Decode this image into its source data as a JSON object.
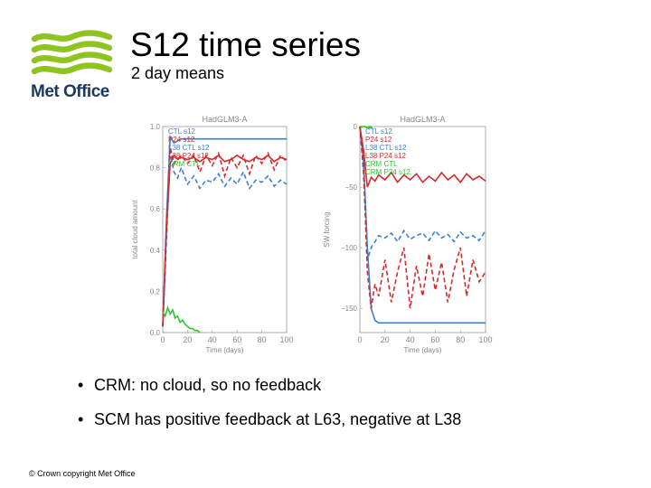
{
  "header": {
    "title": "S12 time series",
    "subtitle": "2 day means",
    "logo_text": "Met Office"
  },
  "bullets": [
    "CRM: no cloud, so no feedback",
    "SCM has positive feedback at L63, negative at L38"
  ],
  "bullet_symbol": "•",
  "footer": "© Crown copyright   Met Office",
  "logo_color": "#8fc31f",
  "chart_data": [
    {
      "type": "line",
      "title": "HadGLM3-A",
      "xlabel": "Time (days)",
      "ylabel": "total cloud amount",
      "xlim": [
        0,
        100
      ],
      "ylim": [
        0,
        1
      ],
      "x_ticks": [
        "0",
        "20",
        "40",
        "60",
        "80",
        "100"
      ],
      "y_ticks": [
        "0.0",
        "0.2",
        "0.4",
        "0.6",
        "0.8",
        "1.0"
      ],
      "legend": [
        "CTL s12",
        "P24 s12",
        "L38 CTL s12",
        "L38 P24 s12",
        "CRM CTL"
      ],
      "series": [
        {
          "name": "CTL s12",
          "color": "#3d7fd1",
          "dash": "",
          "x": [
            0,
            3,
            6,
            9,
            12,
            15,
            20,
            30,
            40,
            50,
            60,
            70,
            80,
            90,
            100
          ],
          "y": [
            0.03,
            0.55,
            0.95,
            0.92,
            0.93,
            0.94,
            0.94,
            0.94,
            0.94,
            0.94,
            0.94,
            0.94,
            0.94,
            0.94,
            0.94
          ]
        },
        {
          "name": "P24 s12",
          "color": "#d42a2a",
          "dash": "",
          "x": [
            0,
            3,
            6,
            9,
            12,
            15,
            20,
            25,
            30,
            35,
            40,
            45,
            50,
            55,
            60,
            65,
            70,
            75,
            80,
            85,
            90,
            95,
            100
          ],
          "y": [
            0.03,
            0.5,
            0.82,
            0.86,
            0.84,
            0.85,
            0.84,
            0.85,
            0.83,
            0.85,
            0.84,
            0.86,
            0.83,
            0.84,
            0.86,
            0.84,
            0.83,
            0.85,
            0.84,
            0.86,
            0.83,
            0.85,
            0.84
          ]
        },
        {
          "name": "L38 CTL s12",
          "color": "#3d7fd1",
          "dash": "5,3",
          "x": [
            0,
            3,
            6,
            9,
            12,
            15,
            20,
            25,
            30,
            35,
            40,
            45,
            50,
            55,
            60,
            65,
            70,
            75,
            80,
            85,
            90,
            95,
            100
          ],
          "y": [
            0.03,
            0.45,
            0.88,
            0.78,
            0.75,
            0.8,
            0.72,
            0.76,
            0.7,
            0.74,
            0.73,
            0.77,
            0.71,
            0.75,
            0.72,
            0.78,
            0.7,
            0.74,
            0.73,
            0.76,
            0.71,
            0.74,
            0.72
          ]
        },
        {
          "name": "L38 P24 s12",
          "color": "#d42a2a",
          "dash": "5,3",
          "x": [
            0,
            3,
            6,
            9,
            12,
            15,
            20,
            25,
            30,
            35,
            40,
            45,
            50,
            55,
            60,
            65,
            70,
            75,
            80,
            85,
            90,
            95,
            100
          ],
          "y": [
            0.03,
            0.5,
            0.9,
            0.82,
            0.84,
            0.86,
            0.82,
            0.86,
            0.78,
            0.86,
            0.81,
            0.87,
            0.76,
            0.85,
            0.8,
            0.86,
            0.77,
            0.86,
            0.82,
            0.87,
            0.79,
            0.86,
            0.83
          ]
        },
        {
          "name": "CRM CTL",
          "color": "#2ec62e",
          "dash": "",
          "x": [
            0,
            2,
            4,
            6,
            8,
            10,
            12,
            14,
            16,
            18,
            20,
            22,
            24,
            26,
            28,
            30
          ],
          "y": [
            0.1,
            0.08,
            0.12,
            0.09,
            0.11,
            0.07,
            0.08,
            0.05,
            0.06,
            0.04,
            0.03,
            0.02,
            0.02,
            0.01,
            0.01,
            0.0
          ]
        }
      ]
    },
    {
      "type": "line",
      "title": "HadGLM3-A",
      "xlabel": "Time (days)",
      "ylabel": "SW forcing",
      "xlim": [
        0,
        100
      ],
      "ylim": [
        -170,
        0
      ],
      "x_ticks": [
        "0",
        "20",
        "40",
        "60",
        "80",
        "100"
      ],
      "y_ticks": [
        "0",
        "−50",
        "−100",
        "−150"
      ],
      "legend": [
        "CTL s12",
        "P24 s12",
        "L38 CTL s12",
        "L38 P24 s12",
        "CRM CTL",
        "CRM P24 s12"
      ],
      "series": [
        {
          "name": "CTL s12",
          "color": "#3d7fd1",
          "dash": "",
          "x": [
            0,
            3,
            6,
            9,
            12,
            15,
            20,
            30,
            40,
            50,
            60,
            70,
            80,
            90,
            100
          ],
          "y": [
            0,
            -30,
            -100,
            -150,
            -160,
            -162,
            -162,
            -162,
            -162,
            -162,
            -162,
            -162,
            -162,
            -162,
            -162
          ]
        },
        {
          "name": "P24 s12",
          "color": "#d42a2a",
          "dash": "",
          "x": [
            0,
            3,
            6,
            9,
            12,
            15,
            20,
            25,
            30,
            35,
            40,
            45,
            50,
            55,
            60,
            65,
            70,
            75,
            80,
            85,
            90,
            95,
            100
          ],
          "y": [
            0,
            -20,
            -50,
            -42,
            -45,
            -40,
            -44,
            -38,
            -46,
            -40,
            -44,
            -39,
            -46,
            -41,
            -45,
            -38,
            -44,
            -40,
            -46,
            -39,
            -44,
            -41,
            -45
          ]
        },
        {
          "name": "L38 CTL s12",
          "color": "#3d7fd1",
          "dash": "5,3",
          "x": [
            0,
            3,
            6,
            9,
            12,
            15,
            20,
            25,
            30,
            35,
            40,
            45,
            50,
            55,
            60,
            65,
            70,
            75,
            80,
            85,
            90,
            95,
            100
          ],
          "y": [
            0,
            -40,
            -110,
            -100,
            -95,
            -90,
            -92,
            -88,
            -95,
            -86,
            -93,
            -90,
            -88,
            -94,
            -86,
            -92,
            -89,
            -95,
            -87,
            -92,
            -90,
            -94,
            -86
          ]
        },
        {
          "name": "L38 P24 s12",
          "color": "#d42a2a",
          "dash": "5,3",
          "x": [
            0,
            3,
            6,
            9,
            12,
            15,
            20,
            25,
            30,
            35,
            40,
            45,
            50,
            55,
            60,
            65,
            70,
            75,
            80,
            85,
            90,
            95,
            100
          ],
          "y": [
            0,
            -35,
            -120,
            -150,
            -130,
            -140,
            -110,
            -145,
            -120,
            -100,
            -150,
            -115,
            -140,
            -105,
            -135,
            -112,
            -145,
            -118,
            -100,
            -140,
            -110,
            -128,
            -120
          ]
        },
        {
          "name": "CRM CTL",
          "color": "#2ec62e",
          "dash": "",
          "x": [
            0,
            2,
            4,
            6,
            8,
            10
          ],
          "y": [
            0,
            0,
            0,
            -1,
            -1,
            -1
          ]
        },
        {
          "name": "CRM P24 s12",
          "color": "#2ec62e",
          "dash": "3,2",
          "x": [
            0,
            2,
            4,
            6,
            8,
            10
          ],
          "y": [
            0,
            -1,
            0,
            -1,
            0,
            -1
          ]
        }
      ]
    }
  ]
}
